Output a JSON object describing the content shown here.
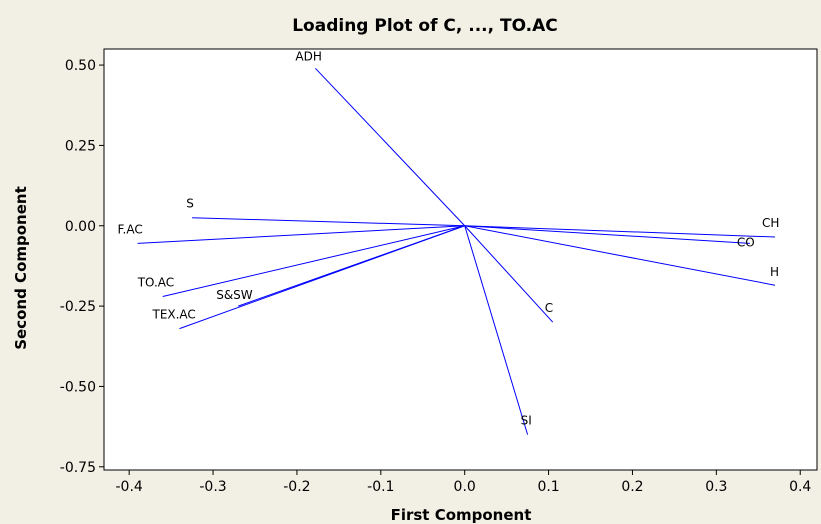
{
  "chart_data": {
    "type": "scatter",
    "title": "Loading Plot of C, ..., TO.AC",
    "xlabel": "First Component",
    "ylabel": "Second Component",
    "xlim": [
      -0.43,
      0.42
    ],
    "ylim": [
      -0.76,
      0.55
    ],
    "xticks": [
      -0.4,
      -0.3,
      -0.2,
      -0.1,
      0.0,
      0.1,
      0.2,
      0.3,
      0.4
    ],
    "xtick_labels": [
      "-0.4",
      "-0.3",
      "-0.2",
      "-0.1",
      "0.0",
      "0.1",
      "0.2",
      "0.3",
      "0.4"
    ],
    "yticks": [
      0.5,
      0.25,
      0.0,
      -0.25,
      -0.5,
      -0.75
    ],
    "ytick_labels": [
      "0.50",
      "0.25",
      "0.00",
      "-0.25",
      "-0.50",
      "-0.75"
    ],
    "grid": false,
    "line_color": "#0000ff",
    "points": [
      {
        "label": "ADH",
        "x": -0.178,
        "y": 0.49
      },
      {
        "label": "S",
        "x": -0.325,
        "y": 0.025
      },
      {
        "label": "F.AC",
        "x": -0.39,
        "y": -0.055
      },
      {
        "label": "TO.AC",
        "x": -0.36,
        "y": -0.22
      },
      {
        "label": "S&SW",
        "x": -0.27,
        "y": -0.25
      },
      {
        "label": "TEX.AC",
        "x": -0.34,
        "y": -0.32
      },
      {
        "label": "CO",
        "x": 0.34,
        "y": -0.055
      },
      {
        "label": "CH",
        "x": 0.37,
        "y": -0.035
      },
      {
        "label": "H",
        "x": 0.37,
        "y": -0.185
      },
      {
        "label": "C",
        "x": 0.105,
        "y": -0.3
      },
      {
        "label": "SI",
        "x": 0.075,
        "y": -0.65
      }
    ]
  }
}
